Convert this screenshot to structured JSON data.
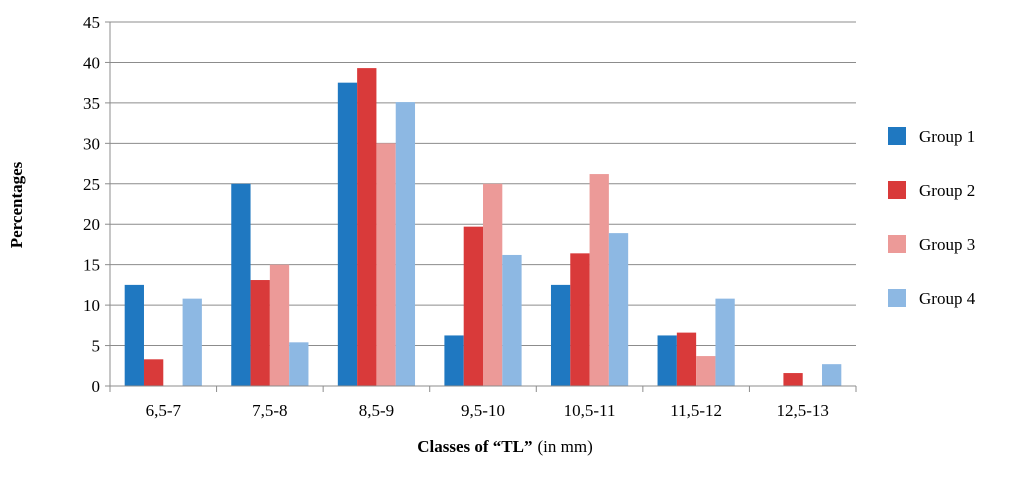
{
  "chart_data": {
    "type": "bar",
    "ylabel": "Percentages",
    "xlabel_bold": "Classes of “TL”",
    "xlabel_unit": "(in mm)",
    "ylim": [
      0,
      45
    ],
    "yticks": [
      0,
      5,
      10,
      15,
      20,
      25,
      30,
      35,
      40,
      45
    ],
    "grid": true,
    "legend_position": "right",
    "categories": [
      "6,5-7",
      "7,5-8",
      "8,5-9",
      "9,5-10",
      "10,5-11",
      "11,5-12",
      "12,5-13"
    ],
    "series": [
      {
        "name": "Group 1",
        "color": "#1f78c1",
        "values": [
          12.5,
          25,
          37.5,
          6.25,
          12.5,
          6.25,
          0
        ]
      },
      {
        "name": "Group 2",
        "color": "#d93a3a",
        "values": [
          3.3,
          13.1,
          39.3,
          19.7,
          16.4,
          6.6,
          1.6
        ]
      },
      {
        "name": "Group 3",
        "color": "#ec9a98",
        "values": [
          0,
          15,
          30,
          25,
          26.2,
          3.7,
          0
        ]
      },
      {
        "name": "Group 4",
        "color": "#8db8e3",
        "values": [
          10.8,
          5.4,
          35.1,
          16.2,
          18.9,
          10.8,
          2.7
        ]
      }
    ]
  }
}
